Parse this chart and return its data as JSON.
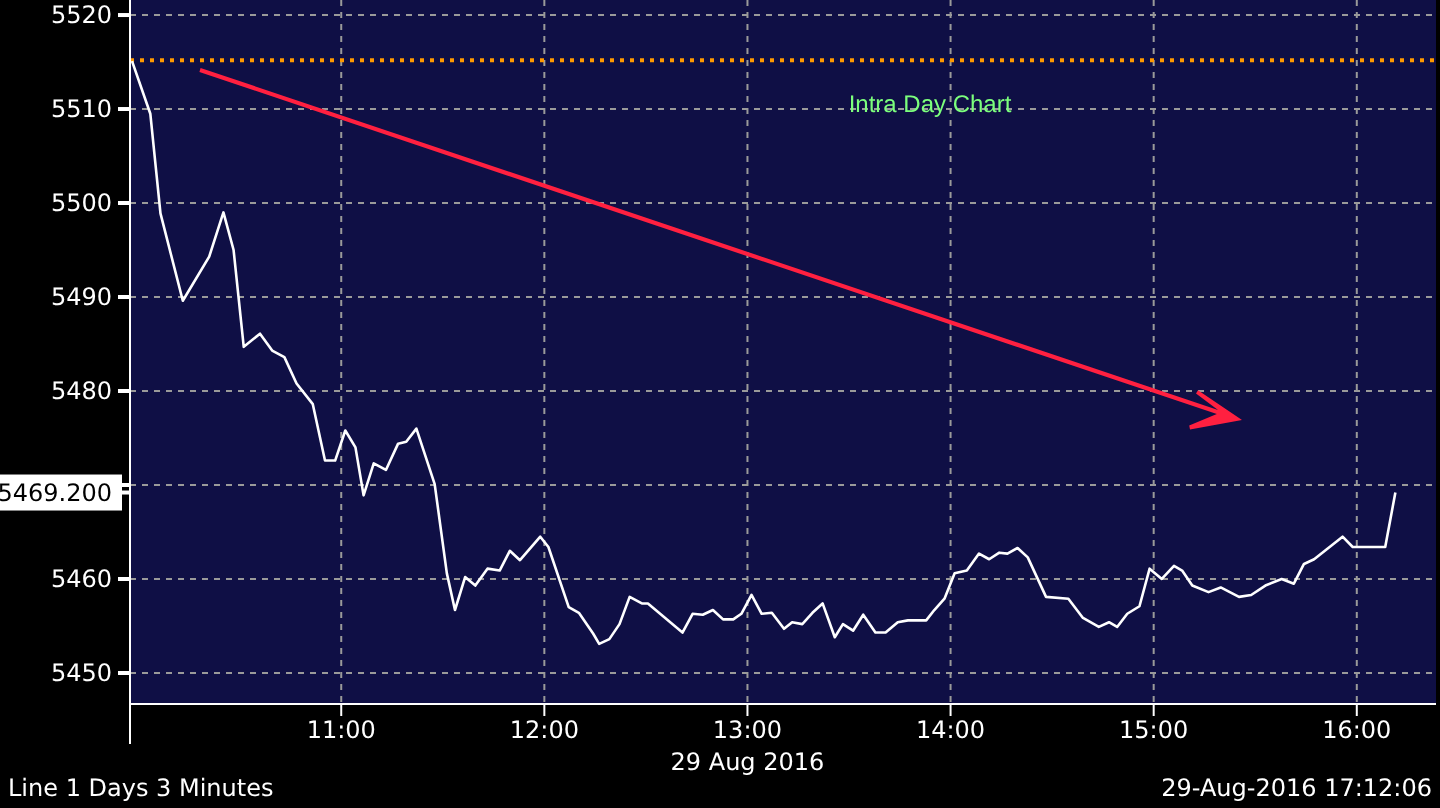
{
  "chart_data": {
    "type": "line",
    "title": "Intra Day Chart",
    "xlabel": "29 Aug 2016",
    "annotations": [
      "Line 1 Days 3 Minutes",
      "29-Aug-2016 17:12:06"
    ],
    "xlim": [
      9.96,
      16.39
    ],
    "ylim": [
      5446.7,
      5521.6
    ],
    "xticks": [
      {
        "value": 11,
        "label": "11:00"
      },
      {
        "value": 12,
        "label": "12:00"
      },
      {
        "value": 13,
        "label": "13:00"
      },
      {
        "value": 14,
        "label": "14:00"
      },
      {
        "value": 15,
        "label": "15:00"
      },
      {
        "value": 16,
        "label": "16:00"
      }
    ],
    "yticks": [
      5450,
      5460,
      {
        "value": 5470,
        "label": null
      },
      {
        "value": 5469.2,
        "label": "5469.200"
      },
      5480,
      5490,
      5500,
      5510,
      5520
    ],
    "grid": true,
    "marker": "none",
    "line_style": "solid",
    "ref_lines": [
      {
        "axis": "y",
        "value": 5515.2,
        "color": "#ff9900",
        "line_style": "dotted"
      }
    ],
    "series": [
      {
        "color": "#ffffff",
        "x": [
          9.97,
          10.06,
          10.11,
          10.22,
          10.35,
          10.42,
          10.47,
          10.52,
          10.6,
          10.66,
          10.72,
          10.78,
          10.86,
          10.92,
          10.97,
          11.02,
          11.07,
          11.11,
          11.16,
          11.22,
          11.28,
          11.32,
          11.37,
          11.46,
          11.52,
          11.56,
          11.61,
          11.66,
          11.72,
          11.78,
          11.83,
          11.88,
          11.98,
          12.02,
          12.12,
          12.17,
          12.24,
          12.27,
          12.32,
          12.37,
          12.42,
          12.48,
          12.51,
          12.68,
          12.73,
          12.78,
          12.83,
          12.88,
          12.93,
          12.97,
          13.02,
          13.07,
          13.12,
          13.18,
          13.22,
          13.27,
          13.32,
          13.37,
          13.43,
          13.47,
          13.52,
          13.57,
          13.63,
          13.68,
          13.74,
          13.79,
          13.88,
          13.92,
          13.97,
          14.02,
          14.08,
          14.14,
          14.19,
          14.24,
          14.28,
          14.33,
          14.38,
          14.47,
          14.58,
          14.65,
          14.73,
          14.78,
          14.82,
          14.87,
          14.93,
          14.98,
          15.04,
          15.1,
          15.14,
          15.19,
          15.27,
          15.33,
          15.42,
          15.48,
          15.55,
          15.63,
          15.69,
          15.74,
          15.79,
          15.86,
          15.93,
          15.98,
          16.14,
          16.19
        ],
        "values": [
          5515.1,
          5509.5,
          5498.9,
          5489.6,
          5494.3,
          5499.0,
          5495.0,
          5484.7,
          5486.1,
          5484.3,
          5483.6,
          5480.8,
          5478.6,
          5472.6,
          5472.6,
          5475.8,
          5474.0,
          5468.9,
          5472.3,
          5471.6,
          5474.4,
          5474.6,
          5476.0,
          5470.1,
          5460.6,
          5456.7,
          5460.2,
          5459.3,
          5461.1,
          5460.9,
          5463.0,
          5462.0,
          5464.5,
          5463.4,
          5457.0,
          5456.4,
          5454.2,
          5453.1,
          5453.6,
          5455.2,
          5458.1,
          5457.4,
          5457.4,
          5454.3,
          5456.3,
          5456.2,
          5456.7,
          5455.7,
          5455.7,
          5456.3,
          5458.3,
          5456.3,
          5456.4,
          5454.7,
          5455.4,
          5455.2,
          5456.4,
          5457.4,
          5453.8,
          5455.2,
          5454.5,
          5456.2,
          5454.3,
          5454.3,
          5455.4,
          5455.6,
          5455.6,
          5456.7,
          5457.9,
          5460.6,
          5460.9,
          5462.7,
          5462.1,
          5462.8,
          5462.7,
          5463.3,
          5462.3,
          5458.1,
          5457.9,
          5455.9,
          5454.9,
          5455.4,
          5454.9,
          5456.3,
          5457.1,
          5461.1,
          5460.0,
          5461.4,
          5460.9,
          5459.3,
          5458.6,
          5459.1,
          5458.1,
          5458.3,
          5459.3,
          5460.0,
          5459.5,
          5461.6,
          5462.1,
          5463.3,
          5464.5,
          5463.4,
          5463.4,
          5469.2
        ]
      }
    ]
  }
}
